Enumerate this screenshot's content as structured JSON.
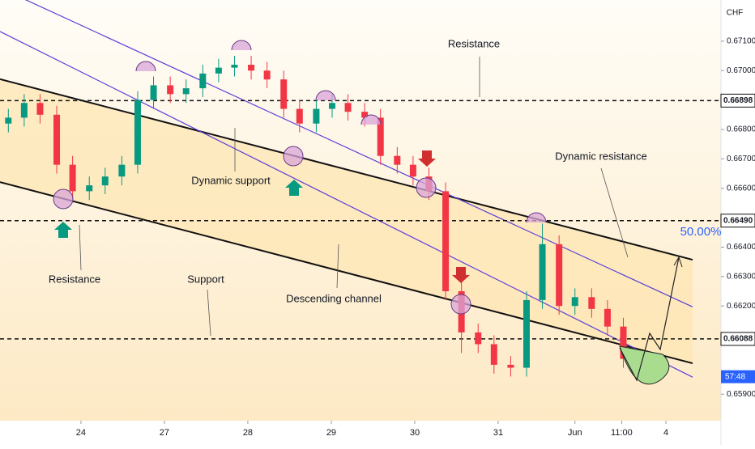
{
  "chart_data": {
    "type": "candlestick",
    "currency": "CHF",
    "x": [
      -0.87,
      -0.68,
      -0.49,
      -0.29,
      -0.1,
      0.1,
      0.29,
      0.49,
      0.68,
      0.87,
      1.07,
      1.26,
      1.46,
      1.65,
      1.84,
      2.04,
      2.23,
      2.43,
      2.62,
      2.82,
      3.01,
      3.2,
      3.4,
      3.59,
      3.79,
      3.98,
      4.17,
      4.37,
      4.56,
      4.76,
      4.95,
      5.15,
      5.34,
      5.53,
      5.73,
      5.92,
      6.12,
      6.31,
      6.5
    ],
    "open": [
      0.6682,
      0.6684,
      0.6689,
      0.6685,
      0.6668,
      0.6659,
      0.6661,
      0.6664,
      0.6668,
      0.669,
      0.6695,
      0.6692,
      0.6694,
      0.6699,
      0.6701,
      0.6702,
      0.67,
      0.6697,
      0.6687,
      0.6682,
      0.6687,
      0.6689,
      0.6686,
      0.6684,
      0.6671,
      0.6668,
      0.6664,
      0.6659,
      0.6625,
      0.6611,
      0.6607,
      0.66,
      0.6599,
      0.6622,
      0.6641,
      0.662,
      0.6623,
      0.6619,
      0.6613
    ],
    "high": [
      0.6687,
      0.6692,
      0.6692,
      0.6688,
      0.6671,
      0.6664,
      0.6667,
      0.6671,
      0.6693,
      0.6698,
      0.6698,
      0.6697,
      0.6702,
      0.6704,
      0.6705,
      0.6705,
      0.6703,
      0.67,
      0.669,
      0.669,
      0.6692,
      0.6692,
      0.6689,
      0.6687,
      0.6674,
      0.6671,
      0.6667,
      0.6662,
      0.6628,
      0.6614,
      0.661,
      0.6603,
      0.6625,
      0.6648,
      0.6644,
      0.6626,
      0.6626,
      0.6622,
      0.6616
    ],
    "low": [
      0.6679,
      0.6681,
      0.6682,
      0.6665,
      0.6656,
      0.6656,
      0.6658,
      0.6661,
      0.6665,
      0.6687,
      0.6689,
      0.6689,
      0.6691,
      0.6696,
      0.6698,
      0.6697,
      0.6694,
      0.6684,
      0.6679,
      0.6679,
      0.6684,
      0.6683,
      0.6681,
      0.6668,
      0.6665,
      0.6661,
      0.6656,
      0.6622,
      0.6604,
      0.6604,
      0.6597,
      0.6596,
      0.6596,
      0.6619,
      0.6617,
      0.6617,
      0.6616,
      0.661,
      0.6599
    ],
    "close": [
      0.6684,
      0.6689,
      0.6685,
      0.6668,
      0.6659,
      0.6661,
      0.6664,
      0.6668,
      0.669,
      0.6695,
      0.6692,
      0.6694,
      0.6699,
      0.6701,
      0.6702,
      0.67,
      0.6697,
      0.6687,
      0.6682,
      0.6687,
      0.6689,
      0.6686,
      0.6684,
      0.6671,
      0.6668,
      0.6664,
      0.6659,
      0.6625,
      0.6611,
      0.6607,
      0.66,
      0.6599,
      0.6622,
      0.6641,
      0.662,
      0.6623,
      0.6619,
      0.6613,
      0.6602
    ],
    "up_color": "#089981",
    "down_color": "#f23645",
    "xlim": [
      -0.97,
      7.67
    ],
    "ylim": [
      0.6581,
      0.6724
    ],
    "xticks": [
      {
        "value": 0,
        "label": "24"
      },
      {
        "value": 1,
        "label": "27"
      },
      {
        "value": 2,
        "label": "28"
      },
      {
        "value": 3,
        "label": "29"
      },
      {
        "value": 4,
        "label": "30"
      },
      {
        "value": 5,
        "label": "31"
      },
      {
        "value": 5.92,
        "label": "Jun"
      },
      {
        "value": 6.48,
        "label": "11:00"
      },
      {
        "value": 7.01,
        "label": "4"
      }
    ],
    "yticks": [
      {
        "value": 0.671,
        "label": "0.67100"
      },
      {
        "value": 0.67,
        "label": "0.67000"
      },
      {
        "value": 0.668,
        "label": "0.66800"
      },
      {
        "value": 0.667,
        "label": "0.66700"
      },
      {
        "value": 0.666,
        "label": "0.66600"
      },
      {
        "value": 0.664,
        "label": "0.66400"
      },
      {
        "value": 0.663,
        "label": "0.66300"
      },
      {
        "value": 0.662,
        "label": "0.66200"
      },
      {
        "value": 0.659,
        "label": "0.65900"
      }
    ],
    "levels": [
      0.66898,
      {
        "value": 0.6649,
        "label": "0.66490"
      },
      0.66088
    ],
    "countdown": "57:48",
    "channel_lines": [
      {
        "color": "#111111",
        "points": [
          [
            -0.97,
            0.66971
          ],
          [
            7.33,
            0.66357
          ]
        ]
      },
      {
        "color": "#111111",
        "points": [
          [
            -0.97,
            0.66621
          ],
          [
            7.33,
            0.66005
          ]
        ]
      },
      {
        "color": "#5b3fd6",
        "points": [
          [
            -0.68,
            0.67243
          ],
          [
            7.33,
            0.66197
          ]
        ]
      },
      {
        "color": "#5b3fd6",
        "points": [
          [
            -0.97,
            0.67133
          ],
          [
            7.33,
            0.65958
          ]
        ]
      }
    ],
    "annotations": [
      "Resistance",
      "Dynamic support",
      "Dynamic resistance",
      "Resistance",
      "Support",
      "Descending channel"
    ],
    "fib_label": "50.00%"
  }
}
